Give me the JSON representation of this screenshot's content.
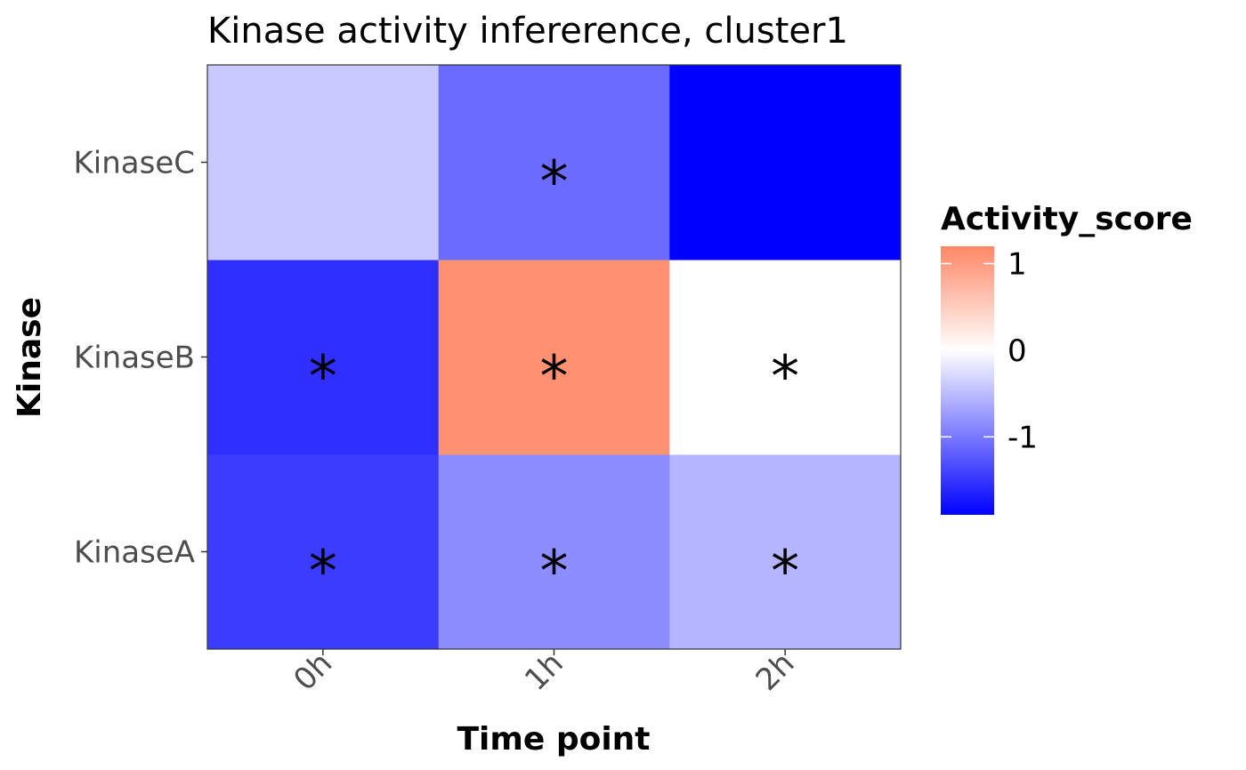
{
  "chart_data": {
    "type": "heatmap",
    "title": "Kinase activity infererence, cluster1",
    "xlabel": "Time point",
    "ylabel": "Kinase",
    "x_categories": [
      "0h",
      "1h",
      "2h"
    ],
    "y_categories": [
      "KinaseA",
      "KinaseB",
      "KinaseC"
    ],
    "values": [
      [
        -1.45,
        -0.85,
        -0.55
      ],
      [
        -1.55,
        1.1,
        0.0
      ],
      [
        -0.4,
        -1.1,
        -1.9
      ]
    ],
    "significance_marker": "*",
    "significant": [
      [
        true,
        true,
        true
      ],
      [
        true,
        true,
        true
      ],
      [
        false,
        true,
        false
      ]
    ],
    "legend": {
      "title": "Activity_score",
      "ticks": [
        1,
        0,
        -1
      ],
      "tick_labels": [
        "1",
        "0",
        "-1"
      ],
      "range": [
        -1.9,
        1.2
      ],
      "colors": {
        "low": "#0000ff",
        "mid": "#ffffff",
        "high": "#ff8766"
      }
    },
    "grid": false
  }
}
